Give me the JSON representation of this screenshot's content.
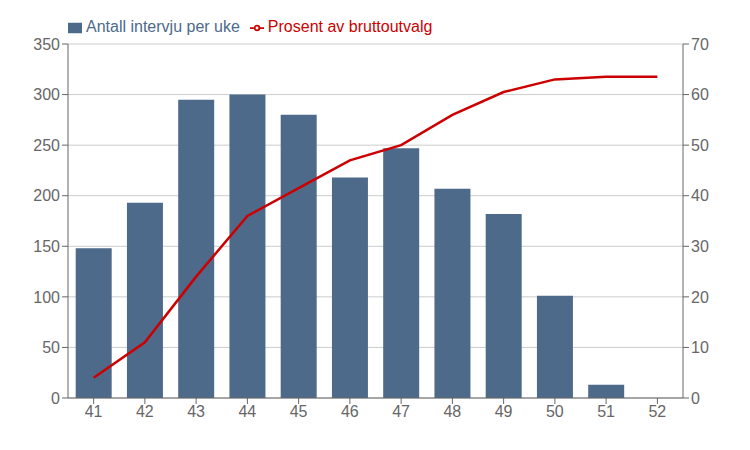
{
  "chart_data": {
    "type": "bar",
    "categories": [
      "41",
      "42",
      "43",
      "44",
      "45",
      "46",
      "47",
      "48",
      "49",
      "50",
      "51",
      "52"
    ],
    "series": [
      {
        "name": "Antall intervju per uke",
        "type": "bar",
        "color": "#4D6A8A",
        "values": [
          148,
          193,
          295,
          300,
          280,
          218,
          247,
          207,
          182,
          101,
          13,
          0
        ]
      },
      {
        "name": "Prosent av bruttoutvalg",
        "type": "line",
        "color": "#CC0000",
        "axis": "y2",
        "values": [
          4.0,
          11.0,
          24.0,
          36.0,
          41.5,
          47.0,
          50.0,
          56.0,
          60.5,
          63.0,
          63.5,
          63.5
        ]
      }
    ],
    "ylim": [
      0,
      350
    ],
    "yticks": [
      0,
      50,
      100,
      150,
      200,
      250,
      300,
      350
    ],
    "y2lim": [
      0,
      70
    ],
    "y2ticks": [
      0,
      10,
      20,
      30,
      40,
      50,
      60,
      70
    ],
    "grid": true,
    "legend": "upper left"
  }
}
